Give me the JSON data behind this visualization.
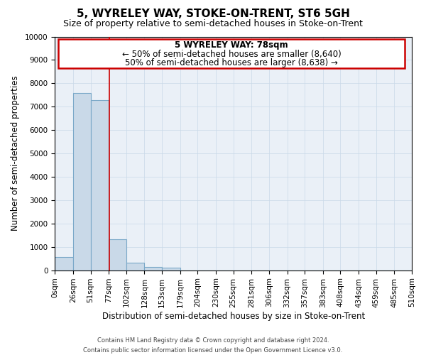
{
  "title": "5, WYRELEY WAY, STOKE-ON-TRENT, ST6 5GH",
  "subtitle": "Size of property relative to semi-detached houses in Stoke-on-Trent",
  "xlabel": "Distribution of semi-detached houses by size in Stoke-on-Trent",
  "ylabel": "Number of semi-detached properties",
  "footer1": "Contains HM Land Registry data © Crown copyright and database right 2024.",
  "footer2": "Contains public sector information licensed under the Open Government Licence v3.0.",
  "bin_edges": [
    0,
    26,
    51,
    77,
    102,
    128,
    153,
    179,
    204,
    230,
    255,
    281,
    306,
    332,
    357,
    383,
    408,
    434,
    459,
    485,
    510
  ],
  "bin_labels": [
    "0sqm",
    "26sqm",
    "51sqm",
    "77sqm",
    "102sqm",
    "128sqm",
    "153sqm",
    "179sqm",
    "204sqm",
    "230sqm",
    "255sqm",
    "281sqm",
    "306sqm",
    "332sqm",
    "357sqm",
    "383sqm",
    "408sqm",
    "434sqm",
    "459sqm",
    "485sqm",
    "510sqm"
  ],
  "bar_heights": [
    560,
    7600,
    7280,
    1340,
    340,
    140,
    100,
    0,
    0,
    0,
    0,
    0,
    0,
    0,
    0,
    0,
    0,
    0,
    0,
    0
  ],
  "bar_color": "#c9d9e8",
  "bar_edgecolor": "#7aA8c8",
  "median_line_x": 78,
  "median_line_color": "#cc0000",
  "ann_line1": "5 WYRELEY WAY: 78sqm",
  "ann_line2": "← 50% of semi-detached houses are smaller (8,640)",
  "ann_line3": "50% of semi-detached houses are larger (8,638) →",
  "ylim": [
    0,
    10000
  ],
  "xlim": [
    0,
    510
  ],
  "bg_color": "#ffffff",
  "plot_bg_color": "#eaf0f7",
  "grid_color": "#c8d8e8",
  "title_fontsize": 11,
  "subtitle_fontsize": 9,
  "axis_label_fontsize": 8.5,
  "tick_fontsize": 7.5,
  "annotation_fontsize": 8.5
}
